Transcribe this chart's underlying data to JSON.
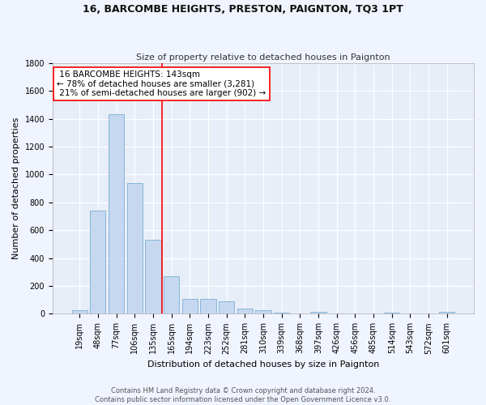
{
  "title": "16, BARCOMBE HEIGHTS, PRESTON, PAIGNTON, TQ3 1PT",
  "subtitle": "Size of property relative to detached houses in Paignton",
  "xlabel": "Distribution of detached houses by size in Paignton",
  "ylabel": "Number of detached properties",
  "footnote1": "Contains HM Land Registry data © Crown copyright and database right 2024.",
  "footnote2": "Contains public sector information licensed under the Open Government Licence v3.0.",
  "bar_labels": [
    "19sqm",
    "48sqm",
    "77sqm",
    "106sqm",
    "135sqm",
    "165sqm",
    "194sqm",
    "223sqm",
    "252sqm",
    "281sqm",
    "310sqm",
    "339sqm",
    "368sqm",
    "397sqm",
    "426sqm",
    "456sqm",
    "485sqm",
    "514sqm",
    "543sqm",
    "572sqm",
    "601sqm"
  ],
  "bar_values": [
    25,
    740,
    1430,
    940,
    530,
    270,
    110,
    110,
    90,
    40,
    25,
    10,
    0,
    15,
    0,
    5,
    0,
    10,
    0,
    0,
    15
  ],
  "bar_color": "#c5d8f0",
  "bar_edge_color": "#7aaed6",
  "property_label": "16 BARCOMBE HEIGHTS: 143sqm",
  "pct_smaller": 78,
  "n_smaller": 3281,
  "pct_larger": 21,
  "n_larger": 902,
  "vline_color": "red",
  "vline_x": 4.47,
  "ylim": [
    0,
    1800
  ],
  "yticks": [
    0,
    200,
    400,
    600,
    800,
    1000,
    1200,
    1400,
    1600,
    1800
  ],
  "bg_color": "#f0f4ff",
  "plot_bg_color": "#e8eef8",
  "grid_color": "white",
  "title_fontsize": 9,
  "subtitle_fontsize": 8,
  "ylabel_fontsize": 8,
  "xlabel_fontsize": 8,
  "tick_fontsize": 7,
  "annot_fontsize": 7.5,
  "footnote_fontsize": 6
}
